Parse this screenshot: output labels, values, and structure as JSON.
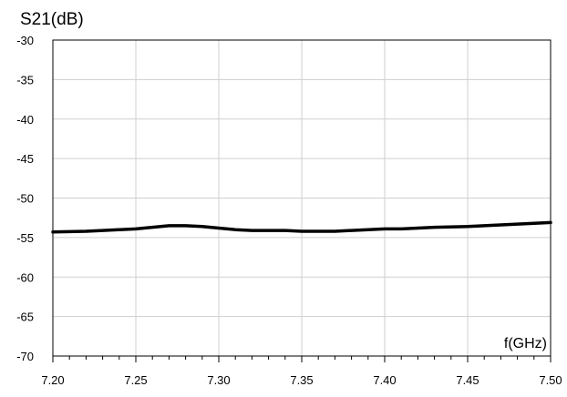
{
  "chart_data": {
    "type": "line",
    "title": "",
    "ylabel": "S21(dB)",
    "xlabel": "f(GHz)",
    "xlim": [
      7.2,
      7.5
    ],
    "ylim": [
      -70,
      -30
    ],
    "grid": true,
    "x_ticks": [
      "7.20",
      "7.25",
      "7.30",
      "7.35",
      "7.40",
      "7.45",
      "7.50"
    ],
    "y_ticks": [
      "-30",
      "-35",
      "-40",
      "-45",
      "-50",
      "-55",
      "-60",
      "-65",
      "-70"
    ],
    "series": [
      {
        "x": [
          7.2,
          7.22,
          7.24,
          7.25,
          7.26,
          7.27,
          7.28,
          7.29,
          7.3,
          7.31,
          7.32,
          7.34,
          7.35,
          7.36,
          7.37,
          7.38,
          7.4,
          7.41,
          7.42,
          7.43,
          7.45,
          7.47,
          7.5
        ],
        "y": [
          -54.3,
          -54.2,
          -54.0,
          -53.9,
          -53.7,
          -53.5,
          -53.5,
          -53.6,
          -53.8,
          -54.0,
          -54.1,
          -54.1,
          -54.2,
          -54.2,
          -54.2,
          -54.1,
          -53.9,
          -53.9,
          -53.8,
          -53.7,
          -53.6,
          -53.4,
          -53.1
        ],
        "color": "#000000"
      }
    ]
  }
}
